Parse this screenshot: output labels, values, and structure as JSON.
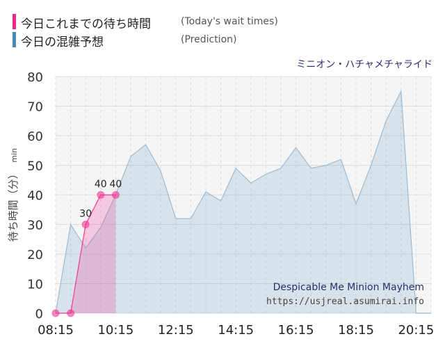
{
  "legend": {
    "today": {
      "label_jp": "今日これまでの待ち時間",
      "label_en": "(Today's wait times)",
      "color": "#f0288c"
    },
    "prediction": {
      "label_jp": "今日の混雑予想",
      "label_en": "(Prediction)",
      "color": "#4a88b8"
    }
  },
  "attraction_jp": "ミニオン・ハチャメチャライド",
  "attraction_en": "Despicable Me Minion Mayhem",
  "source_url": "https://usjreal.asumirai.info",
  "chart_data": {
    "type": "area",
    "ylabel": "待ち時間（分）",
    "yunit": "min",
    "ylim": [
      0,
      80
    ],
    "yticks": [
      0,
      10,
      20,
      30,
      40,
      50,
      60,
      70,
      80
    ],
    "xlim": [
      "08:15",
      "20:45"
    ],
    "xticks": [
      "08:15",
      "10:15",
      "12:15",
      "14:15",
      "16:15",
      "18:15",
      "20:15"
    ],
    "grid": true,
    "series": [
      {
        "name": "今日の混雑予想",
        "color": "#4a88b8",
        "points": [
          [
            "08:15",
            0
          ],
          [
            "08:45",
            30
          ],
          [
            "09:15",
            22
          ],
          [
            "09:45",
            29
          ],
          [
            "10:15",
            40
          ],
          [
            "10:45",
            53
          ],
          [
            "11:15",
            57
          ],
          [
            "11:45",
            48
          ],
          [
            "12:15",
            32
          ],
          [
            "12:45",
            32
          ],
          [
            "13:15",
            41
          ],
          [
            "13:45",
            38
          ],
          [
            "14:15",
            49
          ],
          [
            "14:45",
            44
          ],
          [
            "15:15",
            47
          ],
          [
            "15:45",
            49
          ],
          [
            "16:15",
            56
          ],
          [
            "16:45",
            49
          ],
          [
            "17:15",
            50
          ],
          [
            "17:45",
            52
          ],
          [
            "18:15",
            37
          ],
          [
            "18:45",
            50
          ],
          [
            "19:15",
            65
          ],
          [
            "19:45",
            75
          ],
          [
            "20:15",
            0
          ],
          [
            "20:45",
            0
          ]
        ]
      },
      {
        "name": "今日これまでの待ち時間",
        "color": "#f0288c",
        "points": [
          [
            "08:15",
            0
          ],
          [
            "08:45",
            0
          ],
          [
            "09:15",
            30
          ],
          [
            "09:45",
            40
          ],
          [
            "10:15",
            40
          ]
        ],
        "data_labels": [
          {
            "time": "09:15",
            "label": "30"
          },
          {
            "time": "09:45",
            "label": "40"
          },
          {
            "time": "10:15",
            "label": "40"
          }
        ]
      }
    ]
  }
}
